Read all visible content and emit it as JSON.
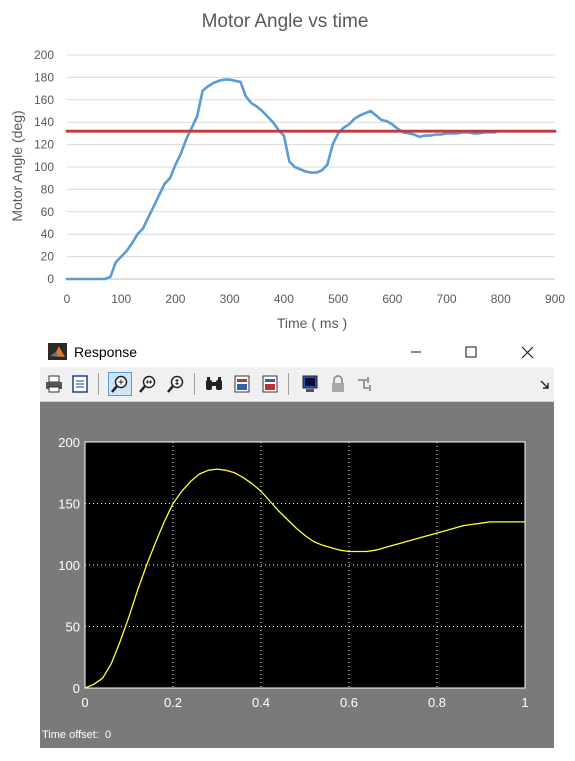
{
  "chart_data": [
    {
      "type": "line",
      "title": "Motor Angle vs time",
      "xlabel": "Time ( ms )",
      "ylabel": "Motor Angle (deg)",
      "xlim": [
        0,
        900
      ],
      "ylim": [
        0,
        200
      ],
      "xticks": [
        0,
        100,
        200,
        300,
        400,
        500,
        600,
        700,
        800,
        900
      ],
      "yticks": [
        0,
        20,
        40,
        60,
        80,
        100,
        120,
        140,
        160,
        180,
        200
      ],
      "grid": "horizontal",
      "series": [
        {
          "color": "#5b9bd5",
          "x": [
            0,
            20,
            40,
            60,
            70,
            80,
            90,
            100,
            110,
            120,
            130,
            140,
            150,
            160,
            170,
            180,
            190,
            200,
            210,
            220,
            230,
            240,
            250,
            260,
            270,
            280,
            290,
            300,
            310,
            320,
            330,
            340,
            350,
            360,
            370,
            380,
            390,
            400,
            410,
            420,
            430,
            440,
            450,
            460,
            470,
            480,
            490,
            500,
            510,
            520,
            530,
            540,
            550,
            560,
            570,
            580,
            590,
            600,
            610,
            620,
            630,
            640,
            650,
            660,
            670,
            680,
            690,
            700,
            710,
            720,
            730,
            740,
            750,
            760,
            770,
            780,
            790
          ],
          "y": [
            0,
            0,
            0,
            0,
            0,
            2,
            15,
            20,
            25,
            32,
            40,
            45,
            55,
            65,
            75,
            85,
            90,
            102,
            112,
            125,
            135,
            145,
            168,
            172,
            175,
            177,
            178,
            178,
            177,
            176,
            163,
            157,
            154,
            150,
            145,
            140,
            133,
            128,
            105,
            100,
            98,
            96,
            95,
            95,
            97,
            102,
            120,
            130,
            135,
            138,
            143,
            146,
            148,
            150,
            146,
            142,
            141,
            138,
            134,
            131,
            130,
            129,
            127,
            128,
            128,
            129,
            129,
            130,
            130,
            130,
            131,
            131,
            130,
            130,
            131,
            131,
            131
          ]
        },
        {
          "color": "#c0393b",
          "x": [
            0,
            900
          ],
          "y": [
            132,
            132
          ]
        }
      ]
    },
    {
      "type": "line",
      "title": "",
      "xlim": [
        0,
        1
      ],
      "ylim": [
        0,
        200
      ],
      "xticks": [
        0,
        0.2,
        0.4,
        0.6,
        0.8,
        1
      ],
      "yticks": [
        0,
        50,
        100,
        150,
        200
      ],
      "grid": "dotted",
      "series": [
        {
          "color": "#ffff33",
          "x": [
            0,
            0.02,
            0.04,
            0.06,
            0.08,
            0.1,
            0.12,
            0.14,
            0.16,
            0.18,
            0.2,
            0.22,
            0.24,
            0.26,
            0.28,
            0.3,
            0.32,
            0.34,
            0.36,
            0.38,
            0.4,
            0.42,
            0.44,
            0.46,
            0.48,
            0.5,
            0.52,
            0.54,
            0.56,
            0.58,
            0.6,
            0.62,
            0.64,
            0.66,
            0.68,
            0.7,
            0.72,
            0.74,
            0.76,
            0.78,
            0.8,
            0.82,
            0.84,
            0.86,
            0.88,
            0.9,
            0.92,
            0.94,
            0.96,
            0.98,
            1
          ],
          "y": [
            0,
            3,
            8,
            20,
            38,
            58,
            80,
            100,
            118,
            135,
            150,
            160,
            168,
            174,
            177,
            178,
            177,
            175,
            171,
            166,
            160,
            152,
            144,
            137,
            130,
            124,
            119,
            116,
            114,
            112,
            111,
            111,
            111,
            112,
            114,
            116,
            118,
            120,
            122,
            124,
            126,
            128,
            130,
            132,
            133,
            134,
            135,
            135,
            135,
            135,
            135
          ]
        }
      ]
    }
  ],
  "window": {
    "title": "Response",
    "minimize_glyph": "—",
    "maximize_glyph": "☐",
    "close_glyph": "✕"
  },
  "toolbar": {
    "icons": [
      "print-icon",
      "parameters-icon",
      "zoom-in-icon",
      "zoom-x-icon",
      "zoom-y-icon",
      "autoscale-icon",
      "save-axes-icon",
      "restore-axes-icon",
      "floating-scope-icon",
      "lock-icon",
      "signal-selector-icon"
    ],
    "active": "zoom-in-icon"
  },
  "scope": {
    "time_offset_label": "Time offset:",
    "time_offset_value": "0",
    "background": "#000000",
    "frame_color": "#7a7a7a"
  }
}
